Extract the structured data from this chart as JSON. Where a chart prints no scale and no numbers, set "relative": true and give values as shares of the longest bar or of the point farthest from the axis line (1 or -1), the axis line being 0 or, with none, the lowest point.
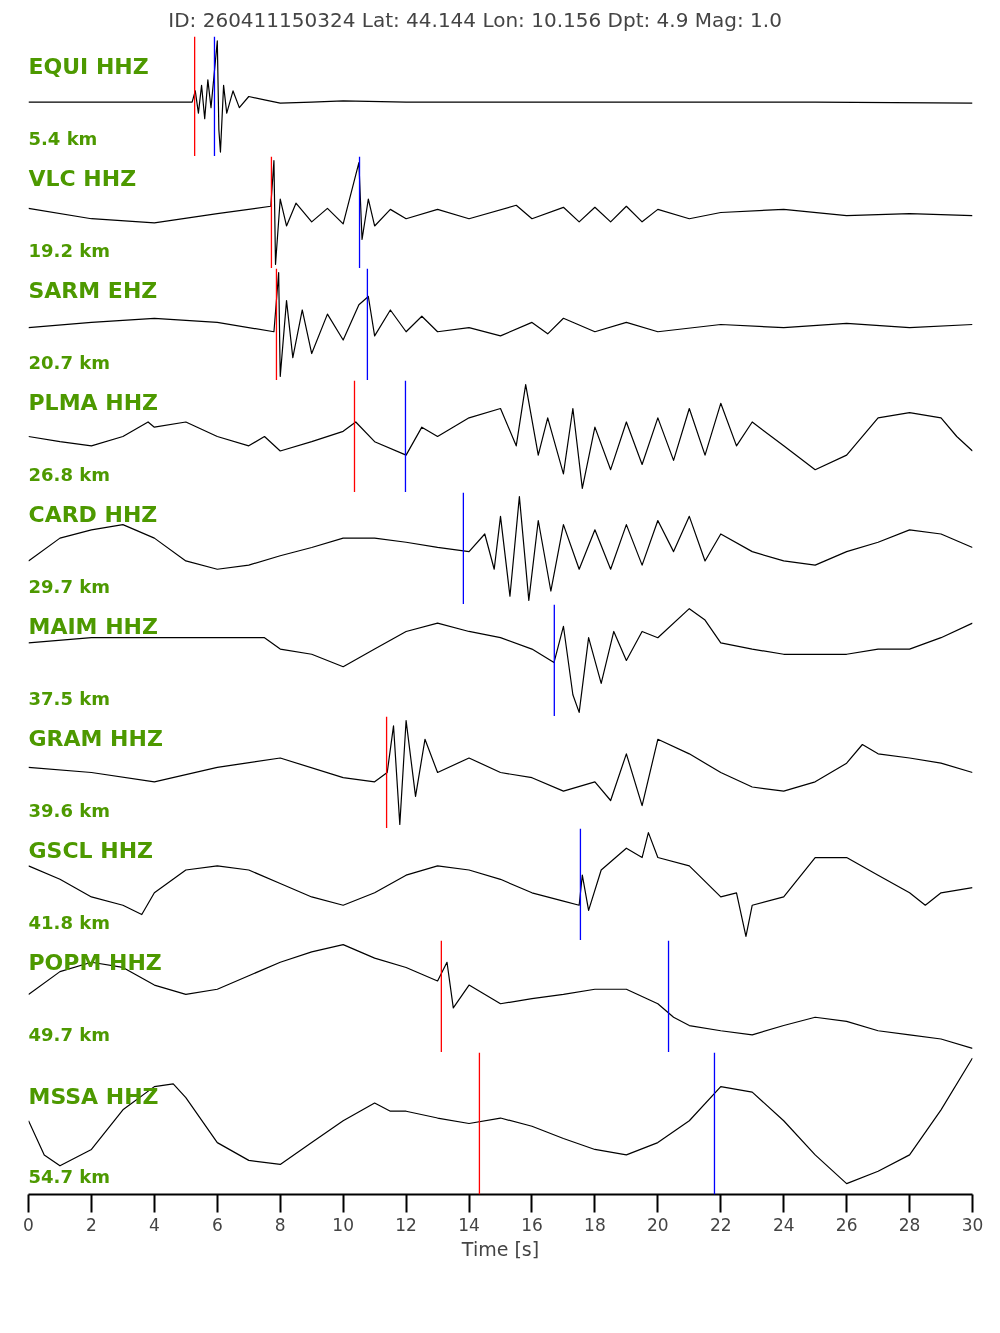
{
  "chart_data": [
    {
      "type": "line",
      "relative": true,
      "title": "ID: 260411150324 Lat:  44.144 Lon:  10.156 Dpt:     4.9 Mag:   1.0",
      "xlim": [
        0,
        30
      ],
      "tick_labels": false,
      "annotations": [
        "EQUI HHZ",
        "5.4 km"
      ],
      "ref_lines": [
        {
          "axis": "x",
          "value": 5.28,
          "color": "#ff0000"
        },
        {
          "axis": "x",
          "value": 5.91,
          "color": "#0000ff"
        }
      ],
      "series": [
        {
          "color": "#000000",
          "x": [
            0,
            5.2,
            5.3,
            5.4,
            5.5,
            5.6,
            5.7,
            5.8,
            5.9,
            6.0,
            6.05,
            6.1,
            6.2,
            6.3,
            6.5,
            6.7,
            7,
            7.5,
            8,
            9,
            10,
            12,
            15,
            20,
            25,
            30
          ],
          "values": [
            0.45,
            0.45,
            0.55,
            0.35,
            0.6,
            0.3,
            0.65,
            0.4,
            0.7,
            1.0,
            0.2,
            0,
            0.6,
            0.35,
            0.55,
            0.4,
            0.5,
            0.47,
            0.44,
            0.45,
            0.46,
            0.45,
            0.45,
            0.45,
            0.45,
            0.44
          ]
        }
      ]
    },
    {
      "type": "line",
      "relative": true,
      "xlim": [
        0,
        30
      ],
      "tick_labels": false,
      "annotations": [
        "VLC HHZ",
        "19.2 km"
      ],
      "ref_lines": [
        {
          "axis": "x",
          "value": 7.72,
          "color": "#ff0000"
        },
        {
          "axis": "x",
          "value": 10.52,
          "color": "#0000ff"
        }
      ],
      "series": [
        {
          "color": "#000000",
          "x": [
            0,
            2,
            4,
            6,
            7.7,
            7.8,
            7.85,
            8,
            8.2,
            8.5,
            9,
            9.5,
            10,
            10.5,
            10.6,
            10.8,
            11,
            11.5,
            12,
            13,
            14,
            15.5,
            16,
            17,
            17.5,
            18,
            18.5,
            19,
            19.5,
            20,
            21,
            22,
            24,
            26,
            28,
            30
          ],
          "values": [
            0.54,
            0.44,
            0.4,
            0.49,
            0.56,
            1,
            0,
            0.63,
            0.37,
            0.59,
            0.41,
            0.54,
            0.39,
            0.98,
            0.24,
            0.63,
            0.37,
            0.53,
            0.44,
            0.53,
            0.44,
            0.57,
            0.44,
            0.55,
            0.41,
            0.55,
            0.41,
            0.56,
            0.41,
            0.53,
            0.44,
            0.5,
            0.53,
            0.47,
            0.49,
            0.47
          ]
        }
      ]
    },
    {
      "type": "line",
      "relative": true,
      "xlim": [
        0,
        30
      ],
      "tick_labels": false,
      "annotations": [
        "SARM EHZ",
        "20.7 km"
      ],
      "ref_lines": [
        {
          "axis": "x",
          "value": 7.88,
          "color": "#ff0000"
        },
        {
          "axis": "x",
          "value": 10.77,
          "color": "#0000ff"
        }
      ],
      "series": [
        {
          "color": "#000000",
          "x": [
            0,
            2,
            4,
            6,
            7.8,
            7.95,
            8.0,
            8.2,
            8.4,
            8.7,
            9,
            9.5,
            10,
            10.5,
            10.8,
            11,
            11.5,
            12,
            12.5,
            13,
            14,
            15,
            16,
            16.5,
            17,
            18,
            19,
            20,
            22,
            24,
            26,
            28,
            30
          ],
          "values": [
            0.47,
            0.52,
            0.56,
            0.52,
            0.43,
            1,
            0,
            0.73,
            0.18,
            0.64,
            0.22,
            0.6,
            0.35,
            0.69,
            0.77,
            0.39,
            0.64,
            0.43,
            0.58,
            0.43,
            0.47,
            0.39,
            0.52,
            0.41,
            0.56,
            0.43,
            0.52,
            0.43,
            0.5,
            0.47,
            0.51,
            0.47,
            0.5
          ]
        }
      ]
    },
    {
      "type": "line",
      "relative": true,
      "xlim": [
        0,
        30
      ],
      "tick_labels": false,
      "annotations": [
        "PLMA HHZ",
        "26.8 km"
      ],
      "ref_lines": [
        {
          "axis": "x",
          "value": 10.36,
          "color": "#ff0000"
        },
        {
          "axis": "x",
          "value": 11.98,
          "color": "#0000ff"
        }
      ],
      "series": [
        {
          "color": "#000000",
          "x": [
            0,
            1,
            2,
            3,
            3.8,
            4,
            5,
            6,
            7,
            7.5,
            8,
            9,
            10,
            10.4,
            11,
            12,
            12.5,
            13,
            14,
            15,
            15.5,
            15.8,
            16.2,
            16.5,
            17,
            17.3,
            17.6,
            18,
            18.5,
            19,
            19.5,
            20,
            20.5,
            21,
            21.5,
            22,
            22.5,
            23,
            24,
            25,
            26,
            27,
            28,
            29,
            29.5,
            30
          ],
          "values": [
            0.5,
            0.45,
            0.41,
            0.5,
            0.64,
            0.59,
            0.64,
            0.5,
            0.41,
            0.5,
            0.36,
            0.45,
            0.55,
            0.64,
            0.45,
            0.32,
            0.59,
            0.5,
            0.68,
            0.77,
            0.41,
            1,
            0.32,
            0.68,
            0.14,
            0.77,
            0,
            0.59,
            0.18,
            0.64,
            0.23,
            0.68,
            0.27,
            0.77,
            0.32,
            0.82,
            0.41,
            0.64,
            0.41,
            0.18,
            0.32,
            0.68,
            0.73,
            0.68,
            0.5,
            0.36
          ]
        }
      ]
    },
    {
      "type": "line",
      "relative": true,
      "xlim": [
        0,
        30
      ],
      "tick_labels": false,
      "annotations": [
        "CARD HHZ",
        "29.7 km"
      ],
      "ref_lines": [
        {
          "axis": "x",
          "value": 13.82,
          "color": "#0000ff"
        }
      ],
      "series": [
        {
          "color": "#000000",
          "x": [
            0,
            1,
            2,
            3,
            4,
            5,
            6,
            7,
            8,
            9,
            10,
            11,
            12,
            13,
            14,
            14.5,
            14.8,
            15,
            15.3,
            15.6,
            15.9,
            16.2,
            16.6,
            17,
            17.5,
            18,
            18.5,
            19,
            19.5,
            20,
            20.5,
            21,
            21.5,
            22,
            23,
            24,
            25,
            26,
            27,
            28,
            29,
            30
          ],
          "values": [
            0.38,
            0.6,
            0.68,
            0.73,
            0.6,
            0.38,
            0.3,
            0.34,
            0.43,
            0.51,
            0.6,
            0.6,
            0.56,
            0.51,
            0.47,
            0.64,
            0.3,
            0.81,
            0.04,
            1,
            0,
            0.77,
            0.09,
            0.73,
            0.3,
            0.68,
            0.3,
            0.73,
            0.34,
            0.77,
            0.47,
            0.81,
            0.38,
            0.64,
            0.47,
            0.38,
            0.34,
            0.47,
            0.56,
            0.68,
            0.64,
            0.51
          ]
        }
      ]
    },
    {
      "type": "line",
      "relative": true,
      "xlim": [
        0,
        30
      ],
      "tick_labels": false,
      "annotations": [
        "MAIM HHZ",
        "37.5 km"
      ],
      "ref_lines": [
        {
          "axis": "x",
          "value": 16.71,
          "color": "#0000ff"
        }
      ],
      "series": [
        {
          "color": "#000000",
          "x": [
            0,
            2,
            4,
            6,
            7.5,
            8,
            9,
            10,
            11,
            12,
            13,
            14,
            15,
            16,
            16.7,
            17,
            17.3,
            17.5,
            17.8,
            18.2,
            18.6,
            19,
            19.5,
            20,
            21,
            21.5,
            22,
            23,
            24,
            25,
            26,
            27,
            28,
            29,
            30
          ],
          "values": [
            0.67,
            0.72,
            0.72,
            0.72,
            0.72,
            0.61,
            0.56,
            0.44,
            0.61,
            0.78,
            0.86,
            0.78,
            0.72,
            0.61,
            0.48,
            0.83,
            0.17,
            0,
            0.72,
            0.28,
            0.78,
            0.5,
            0.78,
            0.72,
            1,
            0.89,
            0.67,
            0.61,
            0.56,
            0.56,
            0.56,
            0.61,
            0.61,
            0.72,
            0.86
          ]
        }
      ]
    },
    {
      "type": "line",
      "relative": true,
      "xlim": [
        0,
        30
      ],
      "tick_labels": false,
      "annotations": [
        "GRAM HHZ",
        "39.6 km"
      ],
      "ref_lines": [
        {
          "axis": "x",
          "value": 11.38,
          "color": "#ff0000"
        }
      ],
      "series": [
        {
          "color": "#000000",
          "x": [
            0,
            2,
            4,
            6,
            8,
            10,
            11,
            11.4,
            11.6,
            11.8,
            12,
            12.3,
            12.6,
            13,
            14,
            15,
            16,
            17,
            18,
            18.5,
            19,
            19.5,
            20,
            21,
            22,
            23,
            24,
            25,
            26,
            26.5,
            27,
            28,
            29,
            30
          ],
          "values": [
            0.55,
            0.5,
            0.41,
            0.55,
            0.64,
            0.45,
            0.41,
            0.5,
            0.95,
            0,
            1,
            0.27,
            0.82,
            0.5,
            0.64,
            0.5,
            0.45,
            0.32,
            0.41,
            0.23,
            0.68,
            0.18,
            0.82,
            0.68,
            0.5,
            0.36,
            0.32,
            0.41,
            0.59,
            0.77,
            0.68,
            0.64,
            0.59,
            0.5
          ]
        }
      ]
    },
    {
      "type": "line",
      "relative": true,
      "xlim": [
        0,
        30
      ],
      "tick_labels": false,
      "annotations": [
        "GSCL HHZ",
        "41.8 km"
      ],
      "ref_lines": [
        {
          "axis": "x",
          "value": 17.54,
          "color": "#0000ff"
        }
      ],
      "series": [
        {
          "color": "#000000",
          "x": [
            0,
            1,
            2,
            3,
            3.6,
            4,
            5,
            6,
            7,
            8,
            9,
            10,
            11,
            12,
            13,
            14,
            15,
            16,
            17,
            17.5,
            17.6,
            17.8,
            18.2,
            19,
            19.5,
            19.7,
            20,
            21,
            22,
            22.5,
            22.8,
            23,
            24,
            25,
            26,
            27,
            28,
            28.5,
            29,
            30
          ],
          "values": [
            0.68,
            0.55,
            0.38,
            0.3,
            0.21,
            0.42,
            0.64,
            0.68,
            0.64,
            0.51,
            0.38,
            0.3,
            0.42,
            0.59,
            0.68,
            0.64,
            0.55,
            0.42,
            0.34,
            0.3,
            0.59,
            0.25,
            0.64,
            0.85,
            0.76,
            1,
            0.76,
            0.68,
            0.38,
            0.42,
            0,
            0.3,
            0.38,
            0.76,
            0.76,
            0.59,
            0.42,
            0.3,
            0.42,
            0.47
          ]
        }
      ]
    },
    {
      "type": "line",
      "relative": true,
      "xlim": [
        0,
        30
      ],
      "tick_labels": false,
      "annotations": [
        "POPM HHZ",
        "49.7 km"
      ],
      "ref_lines": [
        {
          "axis": "x",
          "value": 13.12,
          "color": "#ff0000"
        },
        {
          "axis": "x",
          "value": 20.34,
          "color": "#0000ff"
        }
      ],
      "series": [
        {
          "color": "#000000",
          "x": [
            0,
            1,
            2,
            3,
            4,
            5,
            6,
            7,
            8,
            9,
            10,
            11,
            12,
            13,
            13.3,
            13.5,
            14,
            15,
            16,
            17,
            18,
            19,
            20,
            20.5,
            21,
            22,
            23,
            24,
            25,
            26,
            27,
            28,
            29,
            30
          ],
          "values": [
            0.52,
            0.74,
            0.83,
            0.78,
            0.61,
            0.52,
            0.57,
            0.7,
            0.83,
            0.93,
            1,
            0.87,
            0.78,
            0.65,
            0.83,
            0.39,
            0.61,
            0.43,
            0.48,
            0.52,
            0.57,
            0.57,
            0.43,
            0.3,
            0.22,
            0.17,
            0.13,
            0.22,
            0.3,
            0.26,
            0.17,
            0.13,
            0.09,
            0
          ]
        }
      ]
    },
    {
      "type": "line",
      "relative": true,
      "xlim": [
        0,
        30
      ],
      "tick_labels": "x",
      "xlabel": "Time [s]",
      "annotations": [
        "MSSA HHZ",
        "54.7 km"
      ],
      "xticks": [
        0,
        2,
        4,
        6,
        8,
        10,
        12,
        14,
        16,
        18,
        20,
        22,
        24,
        26,
        28,
        30
      ],
      "ref_lines": [
        {
          "axis": "x",
          "value": 14.33,
          "color": "#ff0000"
        },
        {
          "axis": "x",
          "value": 21.8,
          "color": "#0000ff"
        }
      ],
      "series": [
        {
          "color": "#000000",
          "x": [
            0,
            0.5,
            1,
            2,
            3,
            4,
            4.6,
            5,
            6,
            7,
            8,
            9,
            10,
            11,
            11.5,
            12,
            13,
            14,
            15,
            16,
            17,
            18,
            19,
            20,
            21,
            22,
            23,
            24,
            25,
            26,
            27,
            28,
            29,
            30
          ],
          "values": [
            0.54,
            0.29,
            0.21,
            0.33,
            0.62,
            0.79,
            0.81,
            0.71,
            0.38,
            0.25,
            0.22,
            0.38,
            0.54,
            0.67,
            0.61,
            0.61,
            0.56,
            0.52,
            0.56,
            0.5,
            0.41,
            0.33,
            0.29,
            0.38,
            0.54,
            0.79,
            0.75,
            0.54,
            0.29,
            0.08,
            0.17,
            0.29,
            0.62,
            1
          ]
        }
      ]
    }
  ]
}
